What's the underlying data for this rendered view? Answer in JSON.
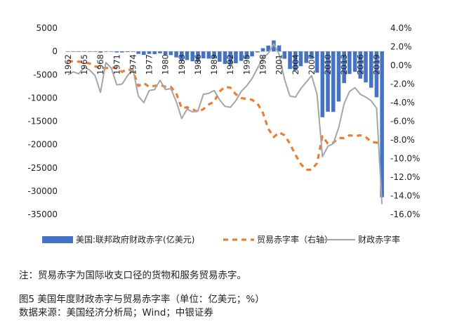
{
  "chart_data": {
    "type": "bar+line",
    "x": [
      1962,
      1963,
      1964,
      1965,
      1966,
      1967,
      1968,
      1969,
      1970,
      1971,
      1972,
      1973,
      1974,
      1975,
      1976,
      1977,
      1978,
      1979,
      1980,
      1981,
      1982,
      1983,
      1984,
      1985,
      1986,
      1987,
      1988,
      1989,
      1990,
      1991,
      1992,
      1993,
      1994,
      1995,
      1996,
      1997,
      1998,
      1999,
      2000,
      2001,
      2002,
      2003,
      2004,
      2005,
      2006,
      2007,
      2008,
      2009,
      2010,
      2011,
      2012,
      2013,
      2014,
      2015,
      2016,
      2017,
      2018,
      2019,
      2020
    ],
    "x_tick_labels": [
      "1962",
      "1965",
      "1968",
      "1971",
      "1974",
      "1977",
      "1980",
      "1983",
      "1986",
      "1989",
      "1992",
      "1995",
      "1998",
      "2001",
      "2004",
      "2007",
      "2010",
      "2013",
      "2016",
      "2019"
    ],
    "y_left": {
      "ticks": [
        "5000",
        "0",
        "-5000",
        "-10000",
        "-15000",
        "-20000",
        "-25000",
        "-30000",
        "-35000"
      ],
      "min": -35000,
      "max": 5000
    },
    "y_right": {
      "ticks": [
        "4.0%",
        "2.0%",
        "0.0%",
        "-2.0%",
        "-4.0%",
        "-6.0%",
        "-8.0%",
        "-10.0%",
        "-12.0%",
        "-14.0%",
        "-16.0%"
      ],
      "min": -16,
      "max": 4
    },
    "series": [
      {
        "name": "美国:联邦政府财政赤字(亿美元)",
        "kind": "bar",
        "axis": "left",
        "color": "#4472C4",
        "values": [
          -71,
          -48,
          -59,
          -14,
          -37,
          -86,
          -252,
          32,
          -28,
          -230,
          -234,
          -149,
          -61,
          -532,
          -737,
          -537,
          -590,
          -407,
          -738,
          -790,
          -1280,
          -2078,
          -1854,
          -2123,
          -2212,
          -1498,
          -1552,
          -1528,
          -2212,
          -2694,
          -2904,
          -2552,
          -2032,
          -1640,
          -1074,
          -219,
          692,
          1256,
          2362,
          1282,
          -1578,
          -3777,
          -4128,
          -3183,
          -2482,
          -1607,
          -4586,
          -14127,
          -12944,
          -12999,
          -10770,
          -6797,
          -4848,
          -4385,
          -5848,
          -6655,
          -7791,
          -9844,
          -31320
        ]
      },
      {
        "name": "贸易赤字率（右轴）",
        "kind": "line",
        "style": "dashed",
        "axis": "right",
        "color": "#ED7D31",
        "values": [
          0.5,
          0.4,
          0.4,
          0.3,
          0.2,
          -0.1,
          -0.3,
          -0.3,
          -0.2,
          -0.3,
          -0.7,
          -0.4,
          -0.6,
          -2.2,
          -1.9,
          -2.3,
          -2.2,
          -2.1,
          -2.3,
          -2.3,
          -3.0,
          -4.6,
          -4.5,
          -4.7,
          -5.0,
          -4.7,
          -4.2,
          -3.9,
          -2.8,
          -2.3,
          -2.4,
          -3.1,
          -3.5,
          -3.6,
          -3.7,
          -4.1,
          -5.1,
          -6.8,
          -7.7,
          -7.2,
          -7.5,
          -8.4,
          -9.6,
          -10.6,
          -11.2,
          -11.2,
          -10.5,
          -7.6,
          -8.4,
          -8.3,
          -7.8,
          -7.8,
          -7.5,
          -7.6,
          -7.5,
          -7.7,
          -8.2,
          -8.3,
          -8.3
        ]
      },
      {
        "name": "财政赤字率",
        "kind": "line",
        "axis": "right",
        "color": "#A5A5A5",
        "values": [
          -1.0,
          -0.7,
          -0.9,
          -0.2,
          -0.5,
          -1.1,
          -2.9,
          0.3,
          -0.3,
          -2.1,
          -2.0,
          -1.1,
          -0.4,
          -3.3,
          -4.0,
          -2.7,
          -2.6,
          -1.6,
          -2.6,
          -2.5,
          -3.9,
          -5.7,
          -4.7,
          -5.0,
          -4.9,
          -3.1,
          -3.0,
          -2.7,
          -3.7,
          -4.4,
          -4.5,
          -3.8,
          -2.8,
          -2.2,
          -1.4,
          -0.3,
          0.8,
          1.3,
          2.3,
          1.2,
          -1.5,
          -3.3,
          -3.4,
          -2.5,
          -1.8,
          -1.1,
          -3.1,
          -9.8,
          -8.7,
          -8.4,
          -6.7,
          -4.1,
          -2.8,
          -2.4,
          -3.1,
          -3.4,
          -3.8,
          -4.6,
          -14.9
        ]
      }
    ]
  },
  "notes": {
    "note": "注：贸易赤字为国际收支口径的货物和服务贸易赤字。",
    "caption": "图5    美国年度财政赤字与贸易赤字率（单位：亿美元；%）",
    "source": "数据来源：美国经济分析局；Wind；中银证券"
  }
}
